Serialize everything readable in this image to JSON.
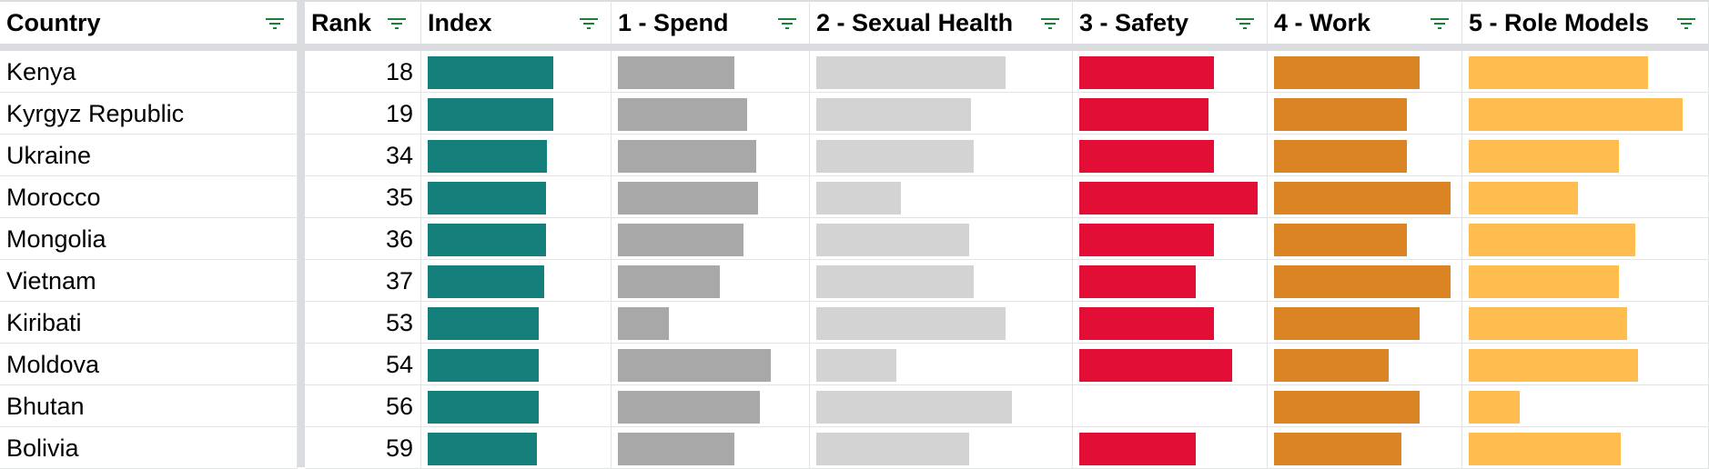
{
  "columns": [
    {
      "key": "country",
      "label": "Country"
    },
    {
      "key": "rank",
      "label": "Rank"
    },
    {
      "key": "index",
      "label": "Index",
      "color": "#15807b"
    },
    {
      "key": "spend",
      "label": "1 - Spend",
      "color": "#a8a8a8"
    },
    {
      "key": "sexual_health",
      "label": "2 - Sexual Health",
      "color": "#d3d3d3"
    },
    {
      "key": "safety",
      "label": "3 - Safety",
      "color": "#e20e36"
    },
    {
      "key": "work",
      "label": "4 - Work",
      "color": "#db8424"
    },
    {
      "key": "role_models",
      "label": "5 - Role Models",
      "color": "#ffbd50"
    }
  ],
  "filter_icon": "filter-icon",
  "rows": [
    {
      "country": "Kenya",
      "rank": "18",
      "index": 0.86,
      "spend": 0.64,
      "sexual_health": 0.83,
      "safety": 0.74,
      "work": 0.8,
      "role_models": 0.84
    },
    {
      "country": "Kyrgyz Republic",
      "rank": "19",
      "index": 0.86,
      "spend": 0.71,
      "sexual_health": 0.68,
      "safety": 0.71,
      "work": 0.73,
      "role_models": 1.0
    },
    {
      "country": "Ukraine",
      "rank": "34",
      "index": 0.82,
      "spend": 0.76,
      "sexual_health": 0.69,
      "safety": 0.74,
      "work": 0.73,
      "role_models": 0.7
    },
    {
      "country": "Morocco",
      "rank": "35",
      "index": 0.81,
      "spend": 0.77,
      "sexual_health": 0.37,
      "safety": 0.98,
      "work": 0.97,
      "role_models": 0.51
    },
    {
      "country": "Mongolia",
      "rank": "36",
      "index": 0.81,
      "spend": 0.69,
      "sexual_health": 0.67,
      "safety": 0.74,
      "work": 0.73,
      "role_models": 0.78
    },
    {
      "country": "Vietnam",
      "rank": "37",
      "index": 0.8,
      "spend": 0.56,
      "sexual_health": 0.69,
      "safety": 0.64,
      "work": 0.97,
      "role_models": 0.7
    },
    {
      "country": "Kiribati",
      "rank": "53",
      "index": 0.76,
      "spend": 0.28,
      "sexual_health": 0.83,
      "safety": 0.74,
      "work": 0.8,
      "role_models": 0.74
    },
    {
      "country": "Moldova",
      "rank": "54",
      "index": 0.76,
      "spend": 0.84,
      "sexual_health": 0.35,
      "safety": 0.84,
      "work": 0.63,
      "role_models": 0.79
    },
    {
      "country": "Bhutan",
      "rank": "56",
      "index": 0.76,
      "spend": 0.78,
      "sexual_health": 0.86,
      "safety": 0.0,
      "work": 0.8,
      "role_models": 0.24
    },
    {
      "country": "Bolivia",
      "rank": "59",
      "index": 0.75,
      "spend": 0.64,
      "sexual_health": 0.67,
      "safety": 0.64,
      "work": 0.7,
      "role_models": 0.71
    }
  ]
}
